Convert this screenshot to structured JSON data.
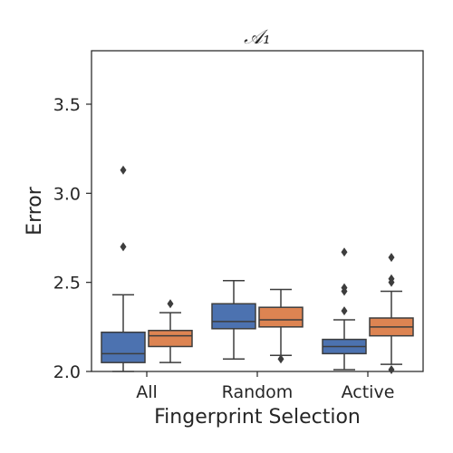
{
  "chart_data": {
    "type": "box",
    "title": "𝒜₁",
    "xlabel": "Fingerprint Selection",
    "ylabel": "Error",
    "ylim": [
      2.0,
      3.8
    ],
    "yticks": [
      2.0,
      2.5,
      3.0,
      3.5
    ],
    "ytick_labels": [
      "2.0",
      "2.5",
      "3.0",
      "3.5"
    ],
    "categories": [
      "All",
      "Random",
      "Active"
    ],
    "grid": false,
    "legend": "none",
    "series": [
      {
        "color": "#4c72b0",
        "boxes": [
          {
            "category": "All",
            "whislo": 2.0,
            "q1": 2.05,
            "med": 2.1,
            "q3": 2.22,
            "whishi": 2.43,
            "fliers": [
              2.7,
              3.13
            ]
          },
          {
            "category": "Random",
            "whislo": 2.07,
            "q1": 2.24,
            "med": 2.28,
            "q3": 2.38,
            "whishi": 2.51,
            "fliers": []
          },
          {
            "category": "Active",
            "whislo": 2.01,
            "q1": 2.1,
            "med": 2.14,
            "q3": 2.18,
            "whishi": 2.29,
            "fliers": [
              2.34,
              2.45,
              2.47,
              2.67
            ]
          }
        ]
      },
      {
        "color": "#dd8452",
        "boxes": [
          {
            "category": "All",
            "whislo": 2.05,
            "q1": 2.14,
            "med": 2.2,
            "q3": 2.23,
            "whishi": 2.33,
            "fliers": [
              2.38
            ]
          },
          {
            "category": "Random",
            "whislo": 2.09,
            "q1": 2.25,
            "med": 2.29,
            "q3": 2.36,
            "whishi": 2.46,
            "fliers": [
              2.07
            ]
          },
          {
            "category": "Active",
            "whislo": 2.04,
            "q1": 2.2,
            "med": 2.25,
            "q3": 2.3,
            "whishi": 2.45,
            "fliers": [
              2.01,
              2.5,
              2.52,
              2.64
            ]
          }
        ]
      }
    ]
  }
}
